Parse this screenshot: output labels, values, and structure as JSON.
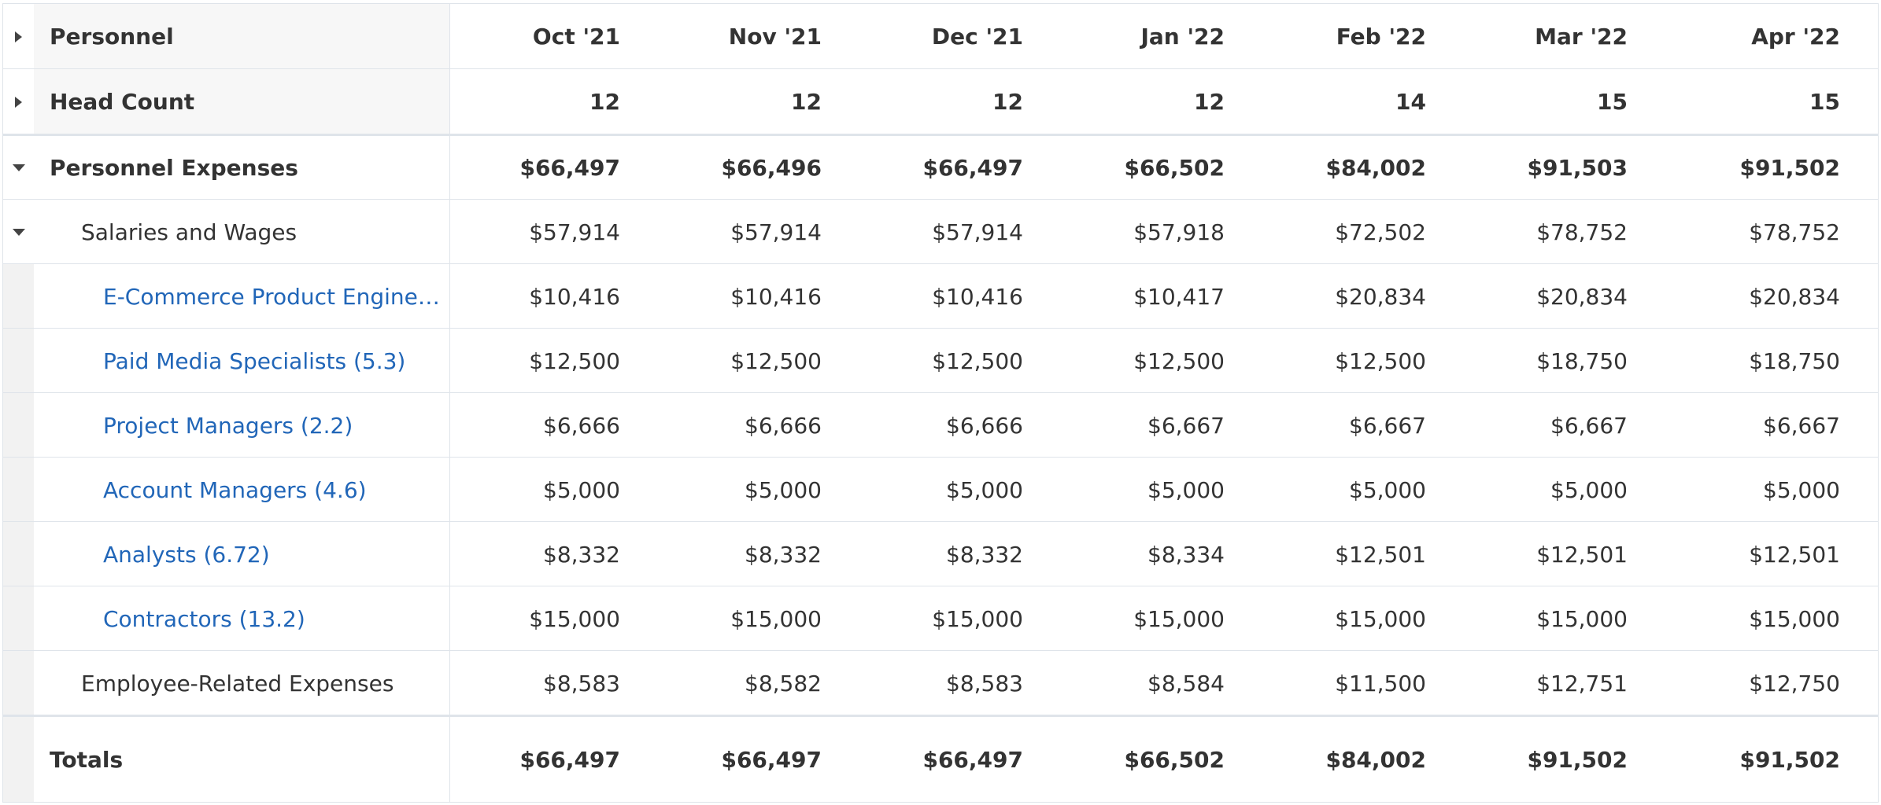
{
  "header": {
    "label": "Personnel",
    "months": [
      "Oct '21",
      "Nov '21",
      "Dec '21",
      "Jan '22",
      "Feb '22",
      "Mar '22",
      "Apr '22"
    ]
  },
  "head_count": {
    "label": "Head Count",
    "values": [
      "12",
      "12",
      "12",
      "12",
      "14",
      "15",
      "15"
    ]
  },
  "personnel_expenses": {
    "label": "Personnel Expenses",
    "values": [
      "$66,497",
      "$66,496",
      "$66,497",
      "$66,502",
      "$84,002",
      "$91,503",
      "$91,502"
    ]
  },
  "salaries": {
    "label": "Salaries and Wages",
    "values": [
      "$57,914",
      "$57,914",
      "$57,914",
      "$57,918",
      "$72,502",
      "$78,752",
      "$78,752"
    ]
  },
  "ecommerce": {
    "label": "E-Commerce Product Engineer…",
    "values": [
      "$10,416",
      "$10,416",
      "$10,416",
      "$10,417",
      "$20,834",
      "$20,834",
      "$20,834"
    ]
  },
  "paid_media": {
    "label": "Paid Media Specialists (5.3)",
    "values": [
      "$12,500",
      "$12,500",
      "$12,500",
      "$12,500",
      "$12,500",
      "$18,750",
      "$18,750"
    ]
  },
  "project_managers": {
    "label": "Project Managers (2.2)",
    "values": [
      "$6,666",
      "$6,666",
      "$6,666",
      "$6,667",
      "$6,667",
      "$6,667",
      "$6,667"
    ]
  },
  "account_managers": {
    "label": "Account Managers (4.6)",
    "values": [
      "$5,000",
      "$5,000",
      "$5,000",
      "$5,000",
      "$5,000",
      "$5,000",
      "$5,000"
    ]
  },
  "analysts": {
    "label": "Analysts (6.72)",
    "values": [
      "$8,332",
      "$8,332",
      "$8,332",
      "$8,334",
      "$12,501",
      "$12,501",
      "$12,501"
    ]
  },
  "contractors": {
    "label": "Contractors (13.2)",
    "values": [
      "$15,000",
      "$15,000",
      "$15,000",
      "$15,000",
      "$15,000",
      "$15,000",
      "$15,000"
    ]
  },
  "employee_related": {
    "label": "Employee-Related Expenses",
    "values": [
      "$8,583",
      "$8,582",
      "$8,583",
      "$8,584",
      "$11,500",
      "$12,751",
      "$12,750"
    ]
  },
  "totals": {
    "label": "Totals",
    "values": [
      "$66,497",
      "$66,497",
      "$66,497",
      "$66,502",
      "$84,002",
      "$91,502",
      "$91,502"
    ]
  },
  "icons": {
    "collapsed": "caret-right-icon",
    "expanded": "caret-down-icon"
  },
  "colors": {
    "link": "#2166b8",
    "text": "#333333",
    "grid": "#dfe4ea",
    "gutter": "#f2f2f2"
  }
}
